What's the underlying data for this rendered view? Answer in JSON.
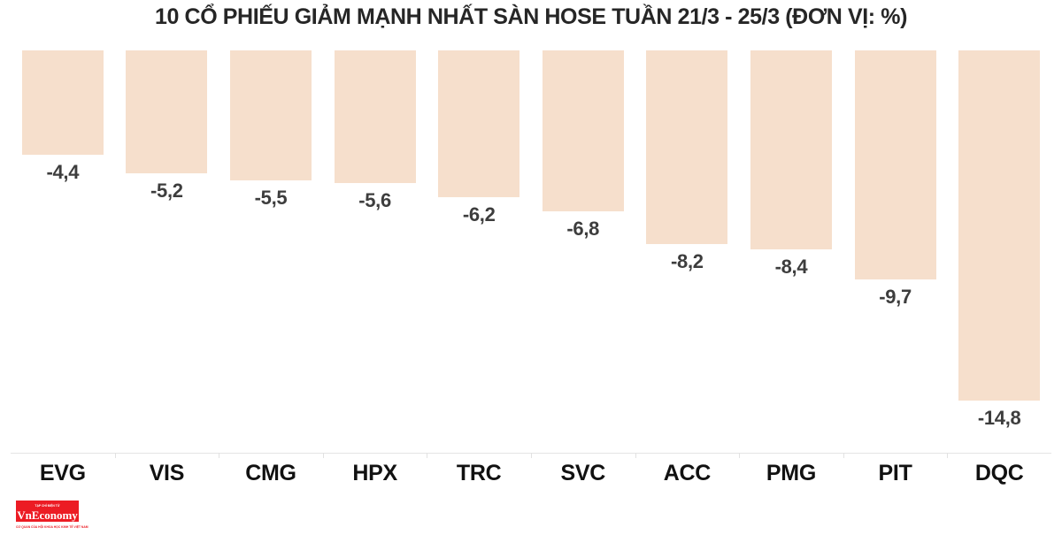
{
  "chart_data": {
    "type": "bar",
    "title": "10 CỔ PHIẾU GIẢM MẠNH NHẤT SÀN HOSE TUẦN 21/3 - 25/3 (ĐƠN VỊ: %)",
    "unit": "%",
    "orientation": "vertical-descending-from-top-baseline",
    "categories": [
      "EVG",
      "VIS",
      "CMG",
      "HPX",
      "TRC",
      "SVC",
      "ACC",
      "PMG",
      "PIT",
      "DQC"
    ],
    "values": [
      -4.4,
      -5.2,
      -5.5,
      -5.6,
      -6.2,
      -6.8,
      -8.2,
      -8.4,
      -9.7,
      -14.8
    ],
    "value_labels": [
      "-4,4",
      "-5,2",
      "-5,5",
      "-5,6",
      "-6,2",
      "-6,8",
      "-8,2",
      "-8,4",
      "-9,7",
      "-14,8"
    ],
    "xlabel": "",
    "ylabel": "",
    "ylim": [
      -15.5,
      0
    ],
    "grid": "off",
    "legend": "none",
    "bar_color": "#f6dfcc",
    "value_label_color": "#3d3d3d",
    "category_label_color": "#111111",
    "axis_color": "#e4e4e4",
    "title_color": "#262626"
  },
  "logo": {
    "top_text": "TẠP CHÍ ĐIỆN TỬ",
    "name": "VnEconomy",
    "tagline": "CƠ QUAN CỦA HỘI KHOA HỌC KINH TẾ VIỆT NAM",
    "bg_color": "#ec1c24",
    "text_color": "#ffffff"
  }
}
